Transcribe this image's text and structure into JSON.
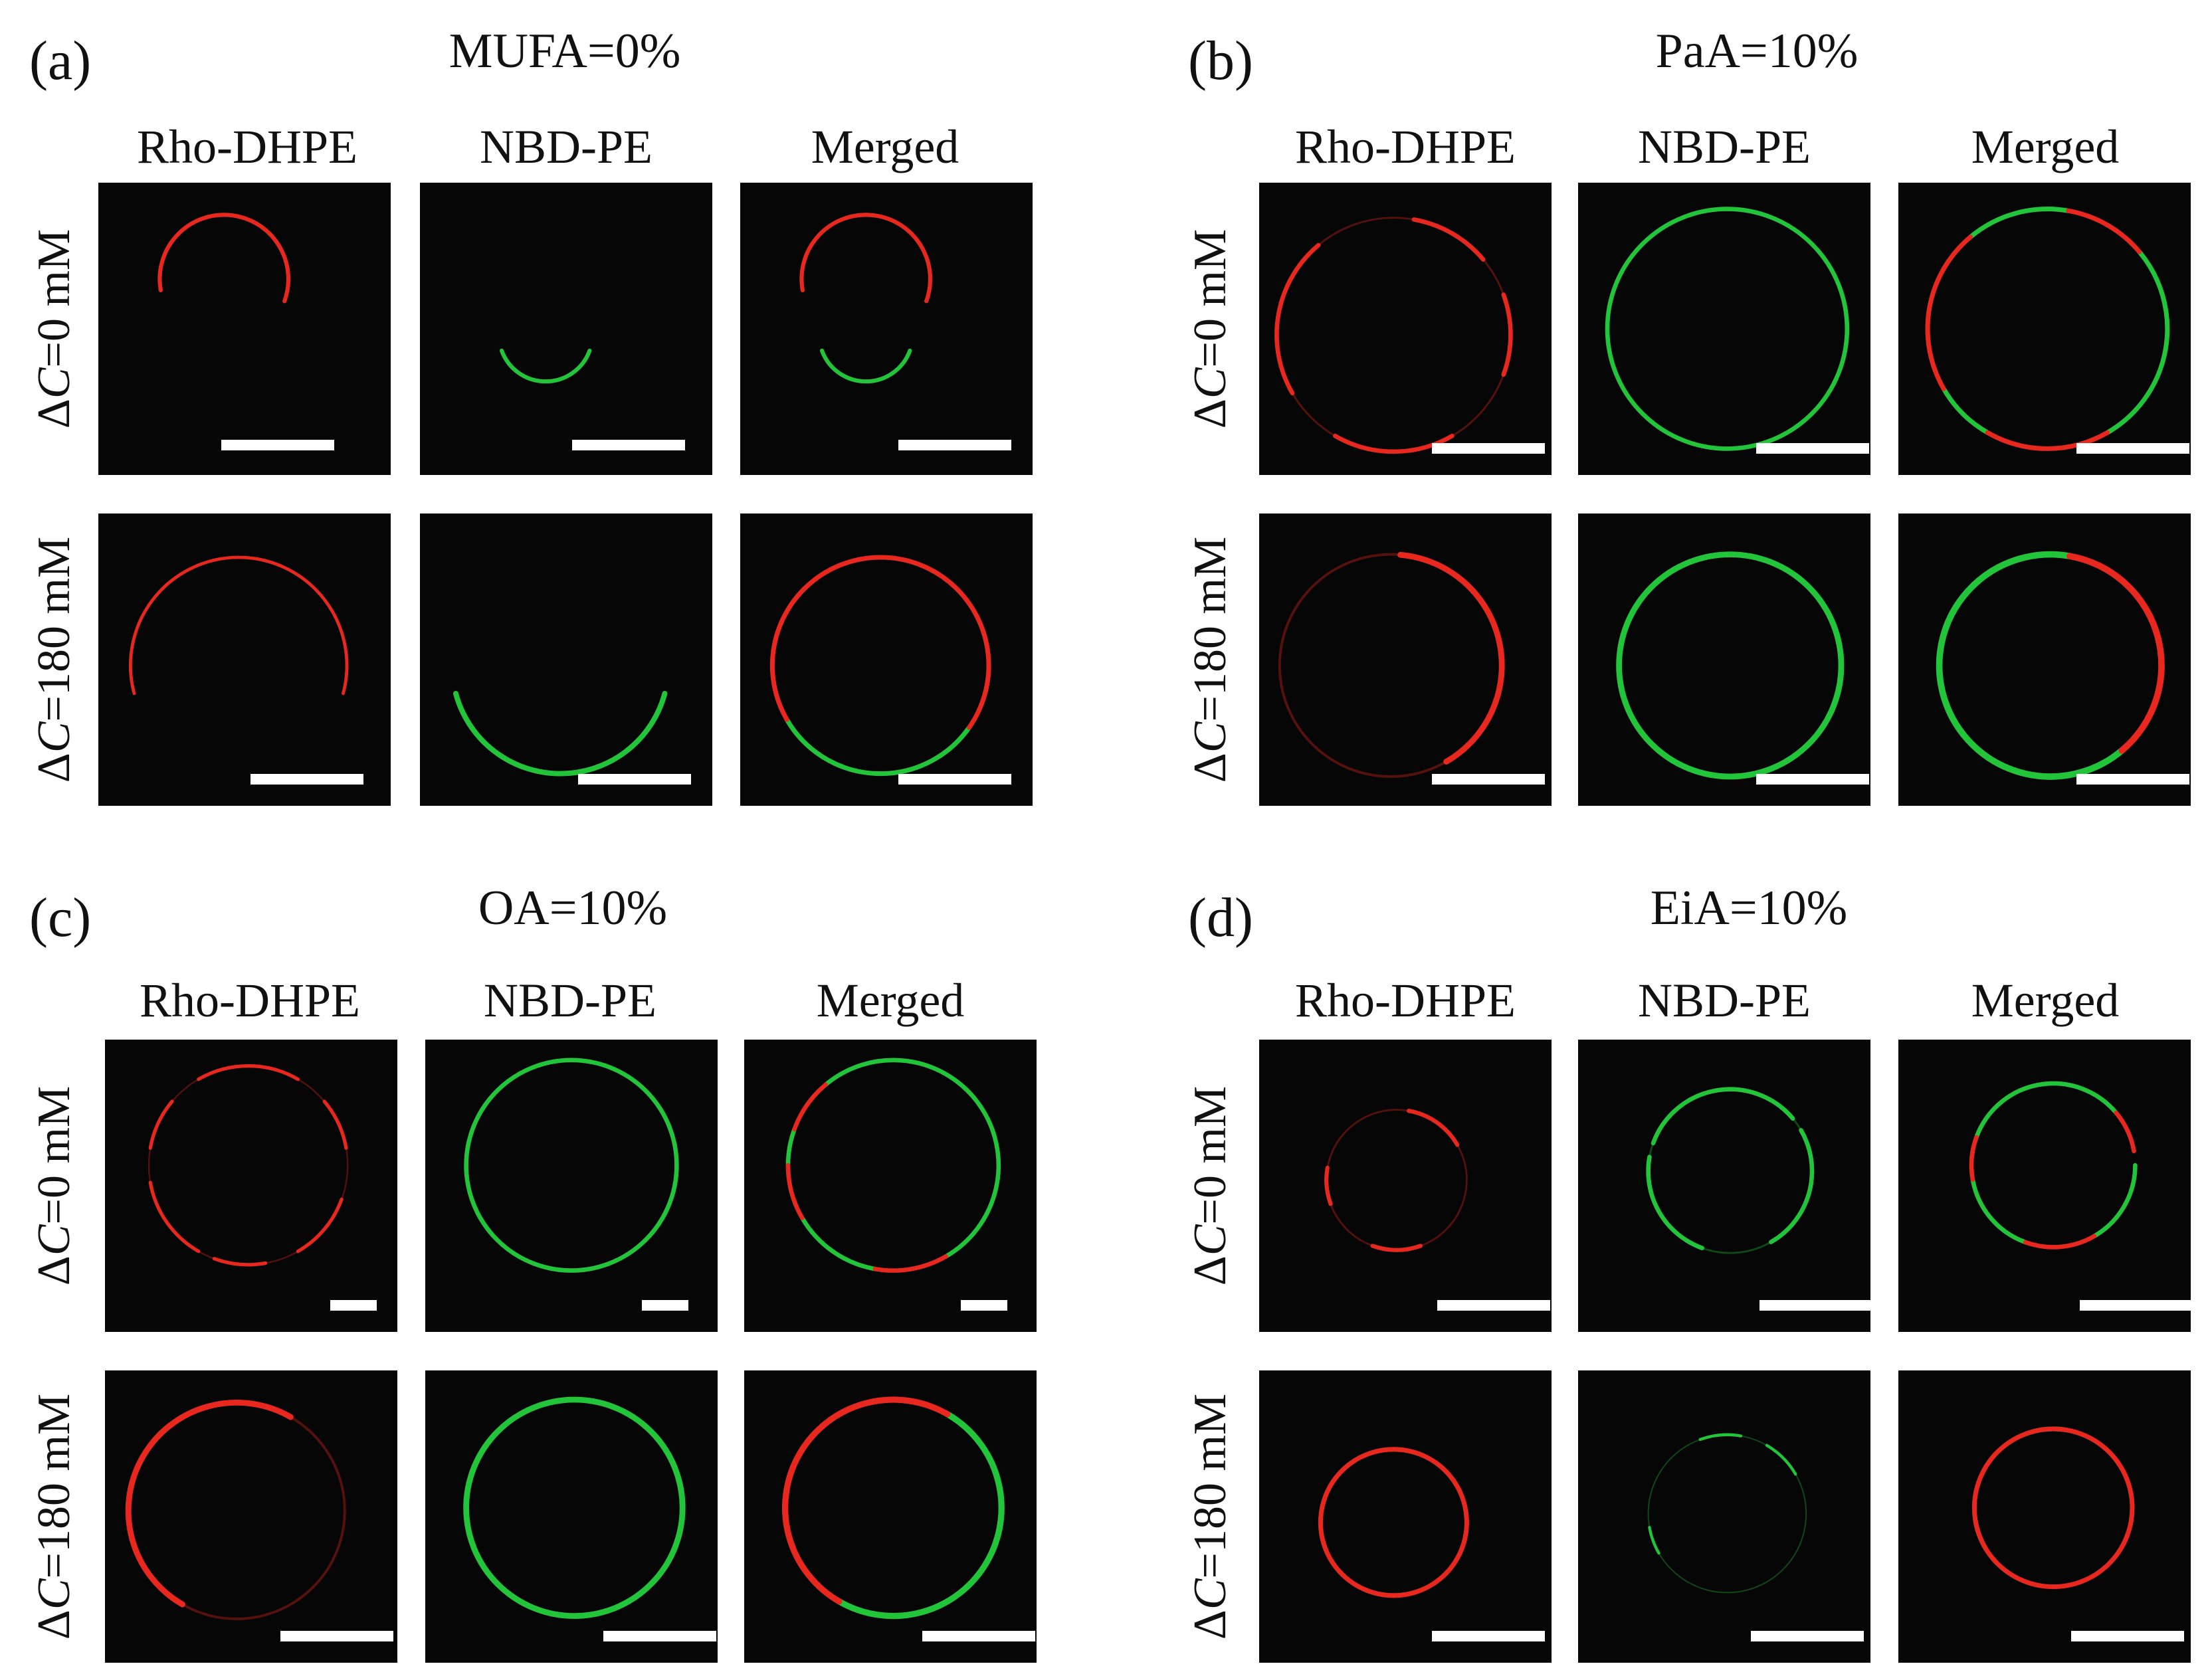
{
  "panels": [
    {
      "letter": "(a)",
      "title": "MUFA=0%",
      "columns": [
        "Rho-DHPE",
        "NBD-PE",
        "Merged"
      ],
      "rows": [
        {
          "delta": "Δ",
          "var": "C",
          "rest": "=0 mM"
        },
        {
          "delta": "Δ",
          "var": "C",
          "rest": "=180 mM"
        }
      ]
    },
    {
      "letter": "(b)",
      "title": "PaA=10%",
      "columns": [
        "Rho-DHPE",
        "NBD-PE",
        "Merged"
      ],
      "rows": [
        {
          "delta": "Δ",
          "var": "C",
          "rest": "=0 mM"
        },
        {
          "delta": "Δ",
          "var": "C",
          "rest": "=180 mM"
        }
      ]
    },
    {
      "letter": "(c)",
      "title": "OA=10%",
      "columns": [
        "Rho-DHPE",
        "NBD-PE",
        "Merged"
      ],
      "rows": [
        {
          "delta": "Δ",
          "var": "C",
          "rest": "=0 mM"
        },
        {
          "delta": "Δ",
          "var": "C",
          "rest": "=180 mM"
        }
      ]
    },
    {
      "letter": "(d)",
      "title": "EiA=10%",
      "columns": [
        "Rho-DHPE",
        "NBD-PE",
        "Merged"
      ],
      "rows": [
        {
          "delta": "Δ",
          "var": "C",
          "rest": "=0 mM"
        },
        {
          "delta": "Δ",
          "var": "C",
          "rest": "=180 mM"
        }
      ]
    }
  ],
  "colors": {
    "background": "#ffffff",
    "image_background": "#060606",
    "rhodamine": "#e8281e",
    "nbd": "#22c43a",
    "scale_bar": "#ffffff"
  }
}
